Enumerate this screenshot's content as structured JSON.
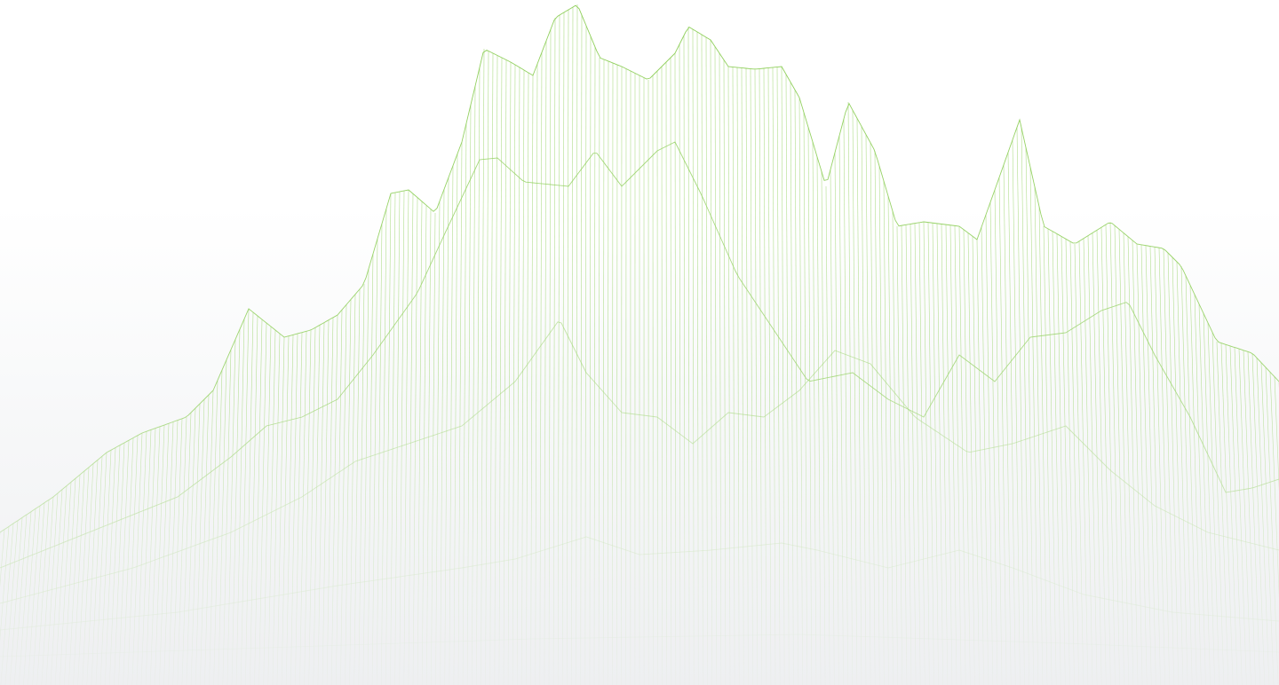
{
  "illustration": {
    "name": "wireframe-mountain-terrain",
    "stroke_color": "#8fcf5a",
    "background_top": "#ffffff",
    "background_bottom": "#eeeff1"
  }
}
